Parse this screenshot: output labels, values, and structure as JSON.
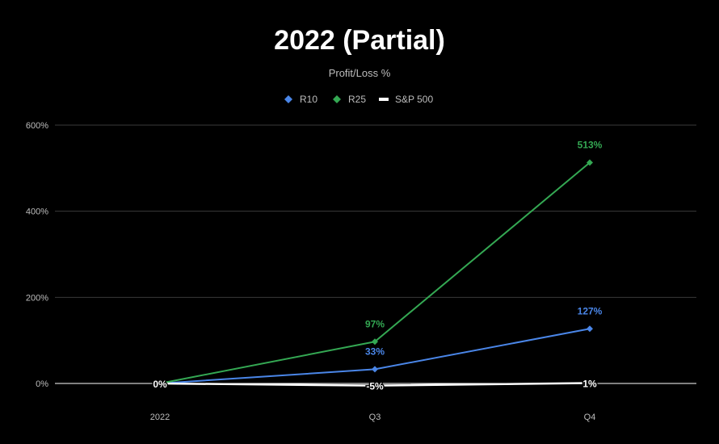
{
  "chart_data": {
    "type": "line",
    "title": "2022 (Partial)",
    "subtitle": "Profit/Loss %",
    "categories": [
      "2022",
      "Q3",
      "Q4"
    ],
    "ylim": [
      0,
      600
    ],
    "yticks": [
      0,
      200,
      400,
      600
    ],
    "ytick_labels": [
      "0%",
      "200%",
      "400%",
      "600%"
    ],
    "grid": true,
    "legend_position": "top",
    "series": [
      {
        "name": "R10",
        "color": "#4a86e8",
        "marker": "diamond",
        "values": [
          0,
          33,
          127
        ],
        "labels": [
          "",
          "33%",
          "127%"
        ]
      },
      {
        "name": "R25",
        "color": "#34a853",
        "marker": "diamond",
        "values": [
          0,
          97,
          513
        ],
        "labels": [
          "",
          "97%",
          "513%"
        ]
      },
      {
        "name": "S&P 500",
        "color": "#ffffff",
        "marker": "line",
        "values": [
          0,
          -5,
          1
        ],
        "labels": [
          "0%",
          "-5%",
          "1%"
        ]
      }
    ]
  }
}
